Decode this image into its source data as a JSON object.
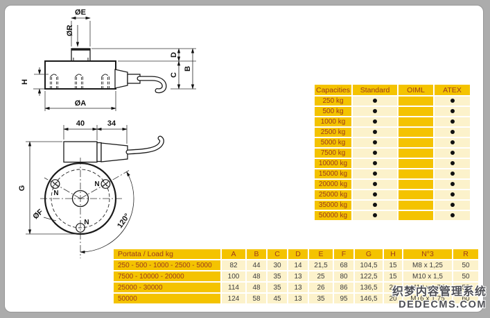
{
  "side_view": {
    "label_e": "ØE",
    "label_r": "ØR",
    "label_d": "D",
    "label_b": "B",
    "label_c": "C",
    "label_h": "H",
    "label_a": "ØA"
  },
  "top_view": {
    "dim_width_body": "40",
    "dim_width_connector": "34",
    "label_g": "G",
    "label_f": "ØF",
    "label_angle": "120°",
    "label_hole": "N"
  },
  "capacities_table": {
    "headers": [
      "Capacities",
      "Standard",
      "OIML",
      "ATEX"
    ],
    "rows": [
      {
        "capacity": "250 kg",
        "standard": true,
        "oiml": false,
        "atex": true
      },
      {
        "capacity": "500 kg",
        "standard": true,
        "oiml": false,
        "atex": true
      },
      {
        "capacity": "1000 kg",
        "standard": true,
        "oiml": false,
        "atex": true
      },
      {
        "capacity": "2500 kg",
        "standard": true,
        "oiml": false,
        "atex": true
      },
      {
        "capacity": "5000 kg",
        "standard": true,
        "oiml": false,
        "atex": true
      },
      {
        "capacity": "7500 kg",
        "standard": true,
        "oiml": false,
        "atex": true
      },
      {
        "capacity": "10000 kg",
        "standard": true,
        "oiml": false,
        "atex": true
      },
      {
        "capacity": "15000 kg",
        "standard": true,
        "oiml": false,
        "atex": true
      },
      {
        "capacity": "20000 kg",
        "standard": true,
        "oiml": false,
        "atex": true
      },
      {
        "capacity": "25000 kg",
        "standard": true,
        "oiml": false,
        "atex": true
      },
      {
        "capacity": "35000 kg",
        "standard": true,
        "oiml": false,
        "atex": true
      },
      {
        "capacity": "50000 kg",
        "standard": true,
        "oiml": false,
        "atex": true
      }
    ]
  },
  "dimensions_table": {
    "headers": [
      "Portata / Load kg",
      "A",
      "B",
      "C",
      "D",
      "E",
      "F",
      "G",
      "H",
      "N°3",
      "R"
    ],
    "rows": [
      [
        "250 - 500 - 1000 - 2500 - 5000",
        "82",
        "44",
        "30",
        "14",
        "21,5",
        "68",
        "104,5",
        "15",
        "M8 x 1,25",
        "50"
      ],
      [
        "7500 - 10000 - 20000",
        "100",
        "48",
        "35",
        "13",
        "25",
        "80",
        "122,5",
        "15",
        "M10 x 1,5",
        "50"
      ],
      [
        "25000 - 30000",
        "114",
        "48",
        "35",
        "13",
        "26",
        "86",
        "136,5",
        "20",
        "M12 x 1,75",
        "50"
      ],
      [
        "50000",
        "124",
        "58",
        "45",
        "13",
        "35",
        "95",
        "146,5",
        "20",
        "M16 x 1,75",
        "60"
      ]
    ]
  },
  "watermark": {
    "line1": "织梦内容管理系统",
    "line2": "DEDECMS.COM"
  },
  "colors": {
    "gold": "#F4C300",
    "cream": "#FCF2CB",
    "header_text": "#9C3A1C",
    "value_text": "#3C3C3C"
  }
}
